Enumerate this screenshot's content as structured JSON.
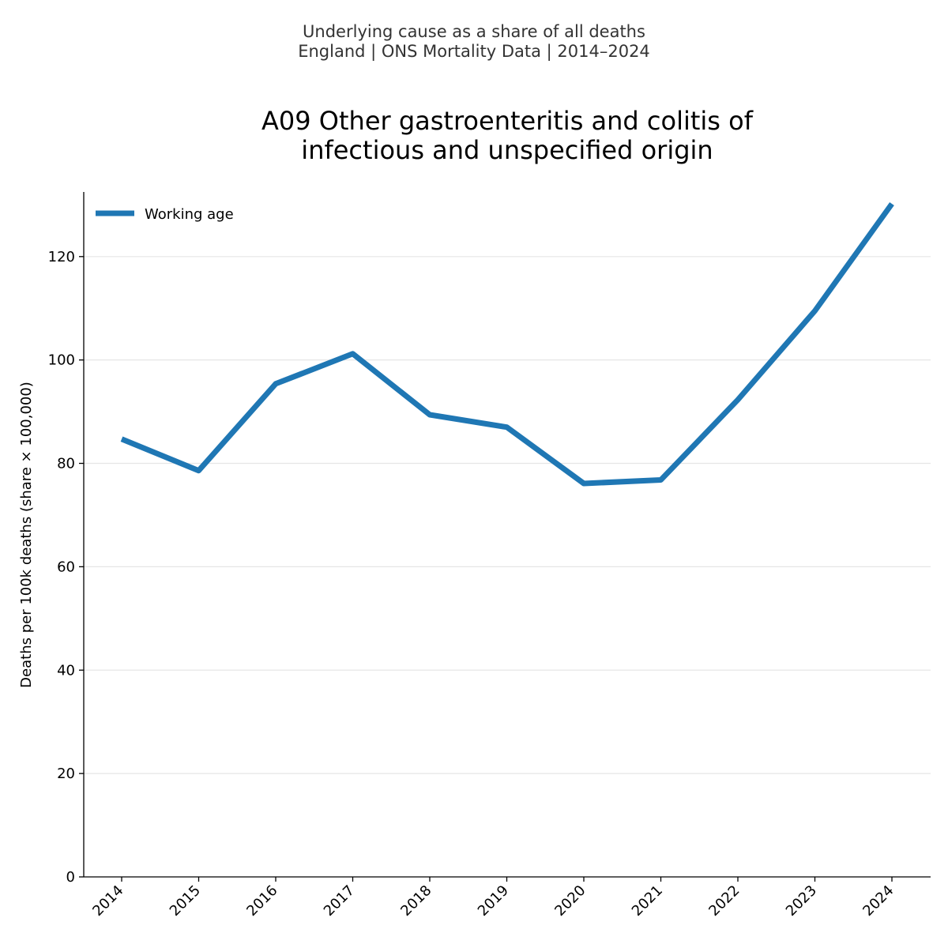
{
  "suptitle": {
    "line1": "Underlying cause as a share of all deaths",
    "line2": "England | ONS Mortality Data | 2014–2024"
  },
  "colors": {
    "series": "#1f77b4",
    "grid": "#e6e6e6",
    "axis": "#000000"
  },
  "chart_data": {
    "type": "line",
    "title": "A09 Other gastroenteritis and colitis of infectious and unspecified origin",
    "title_lines": [
      "A09 Other gastroenteritis and colitis of",
      "infectious and unspecified origin"
    ],
    "xlabel": "",
    "ylabel": "Deaths per 100k deaths (share × 100,000)",
    "x": [
      "2014",
      "2015",
      "2016",
      "2017",
      "2018",
      "2019",
      "2020",
      "2021",
      "2022",
      "2023",
      "2024"
    ],
    "ylim": [
      0,
      132.5
    ],
    "yticks": [
      0,
      20,
      40,
      60,
      80,
      100,
      120
    ],
    "grid": "y",
    "legend_position": "top-left",
    "series": [
      {
        "name": "Working age",
        "values": [
          84.7,
          78.6,
          95.4,
          101.2,
          89.4,
          87.0,
          76.1,
          76.8,
          92.3,
          109.5,
          130.2
        ]
      }
    ]
  }
}
